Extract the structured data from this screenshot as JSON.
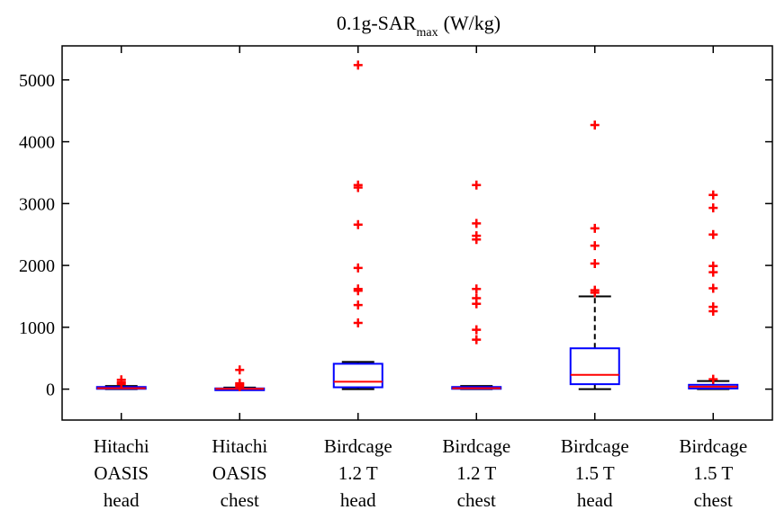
{
  "chart_data": {
    "type": "box",
    "title_main": "0.1g-SAR",
    "title_sub": "max",
    "title_unit": "(W/kg)",
    "ylim": [
      -500,
      5550
    ],
    "yticks": [
      0,
      1000,
      2000,
      3000,
      4000,
      5000
    ],
    "ytick_labels": [
      "0",
      "1000",
      "2000",
      "3000",
      "4000",
      "5000"
    ],
    "categories": [
      [
        "Hitachi",
        "OASIS",
        "head"
      ],
      [
        "Hitachi",
        "OASIS",
        "chest"
      ],
      [
        "Birdcage",
        "1.2 T",
        "head"
      ],
      [
        "Birdcage",
        "1.2 T",
        "chest"
      ],
      [
        "Birdcage",
        "1.5 T",
        "head"
      ],
      [
        "Birdcage",
        "1.5 T",
        "chest"
      ]
    ],
    "boxes": [
      {
        "whisker_low": 0,
        "q1": 5,
        "median": 15,
        "q3": 35,
        "whisker_high": 50,
        "outliers": [
          85,
          110,
          150
        ]
      },
      {
        "whisker_low": 0,
        "q1": 2,
        "median": 5,
        "q3": 12,
        "whisker_high": 25,
        "outliers": [
          40,
          70,
          95,
          310
        ]
      },
      {
        "whisker_low": 0,
        "q1": 30,
        "median": 120,
        "q3": 410,
        "whisker_high": 440,
        "outliers": [
          1070,
          1360,
          1590,
          1620,
          1960,
          2660,
          3260,
          3300,
          5240
        ]
      },
      {
        "whisker_low": 0,
        "q1": 5,
        "median": 15,
        "q3": 35,
        "whisker_high": 50,
        "outliers": [
          800,
          960,
          1380,
          1470,
          1620,
          2420,
          2480,
          2680,
          3300
        ]
      },
      {
        "whisker_low": 0,
        "q1": 80,
        "median": 230,
        "q3": 660,
        "whisker_high": 1500,
        "outliers": [
          1560,
          1600,
          2030,
          2320,
          2600,
          4270
        ]
      },
      {
        "whisker_low": 0,
        "q1": 10,
        "median": 40,
        "q3": 70,
        "whisker_high": 130,
        "outliers": [
          160,
          1260,
          1330,
          1630,
          1890,
          1990,
          2500,
          2930,
          3140
        ]
      }
    ],
    "colors": {
      "box": "#0000ff",
      "median": "#ff0000",
      "outlier": "#ff0000",
      "whisker": "#000000",
      "axis": "#000000"
    },
    "grid": false,
    "legend": "none"
  }
}
